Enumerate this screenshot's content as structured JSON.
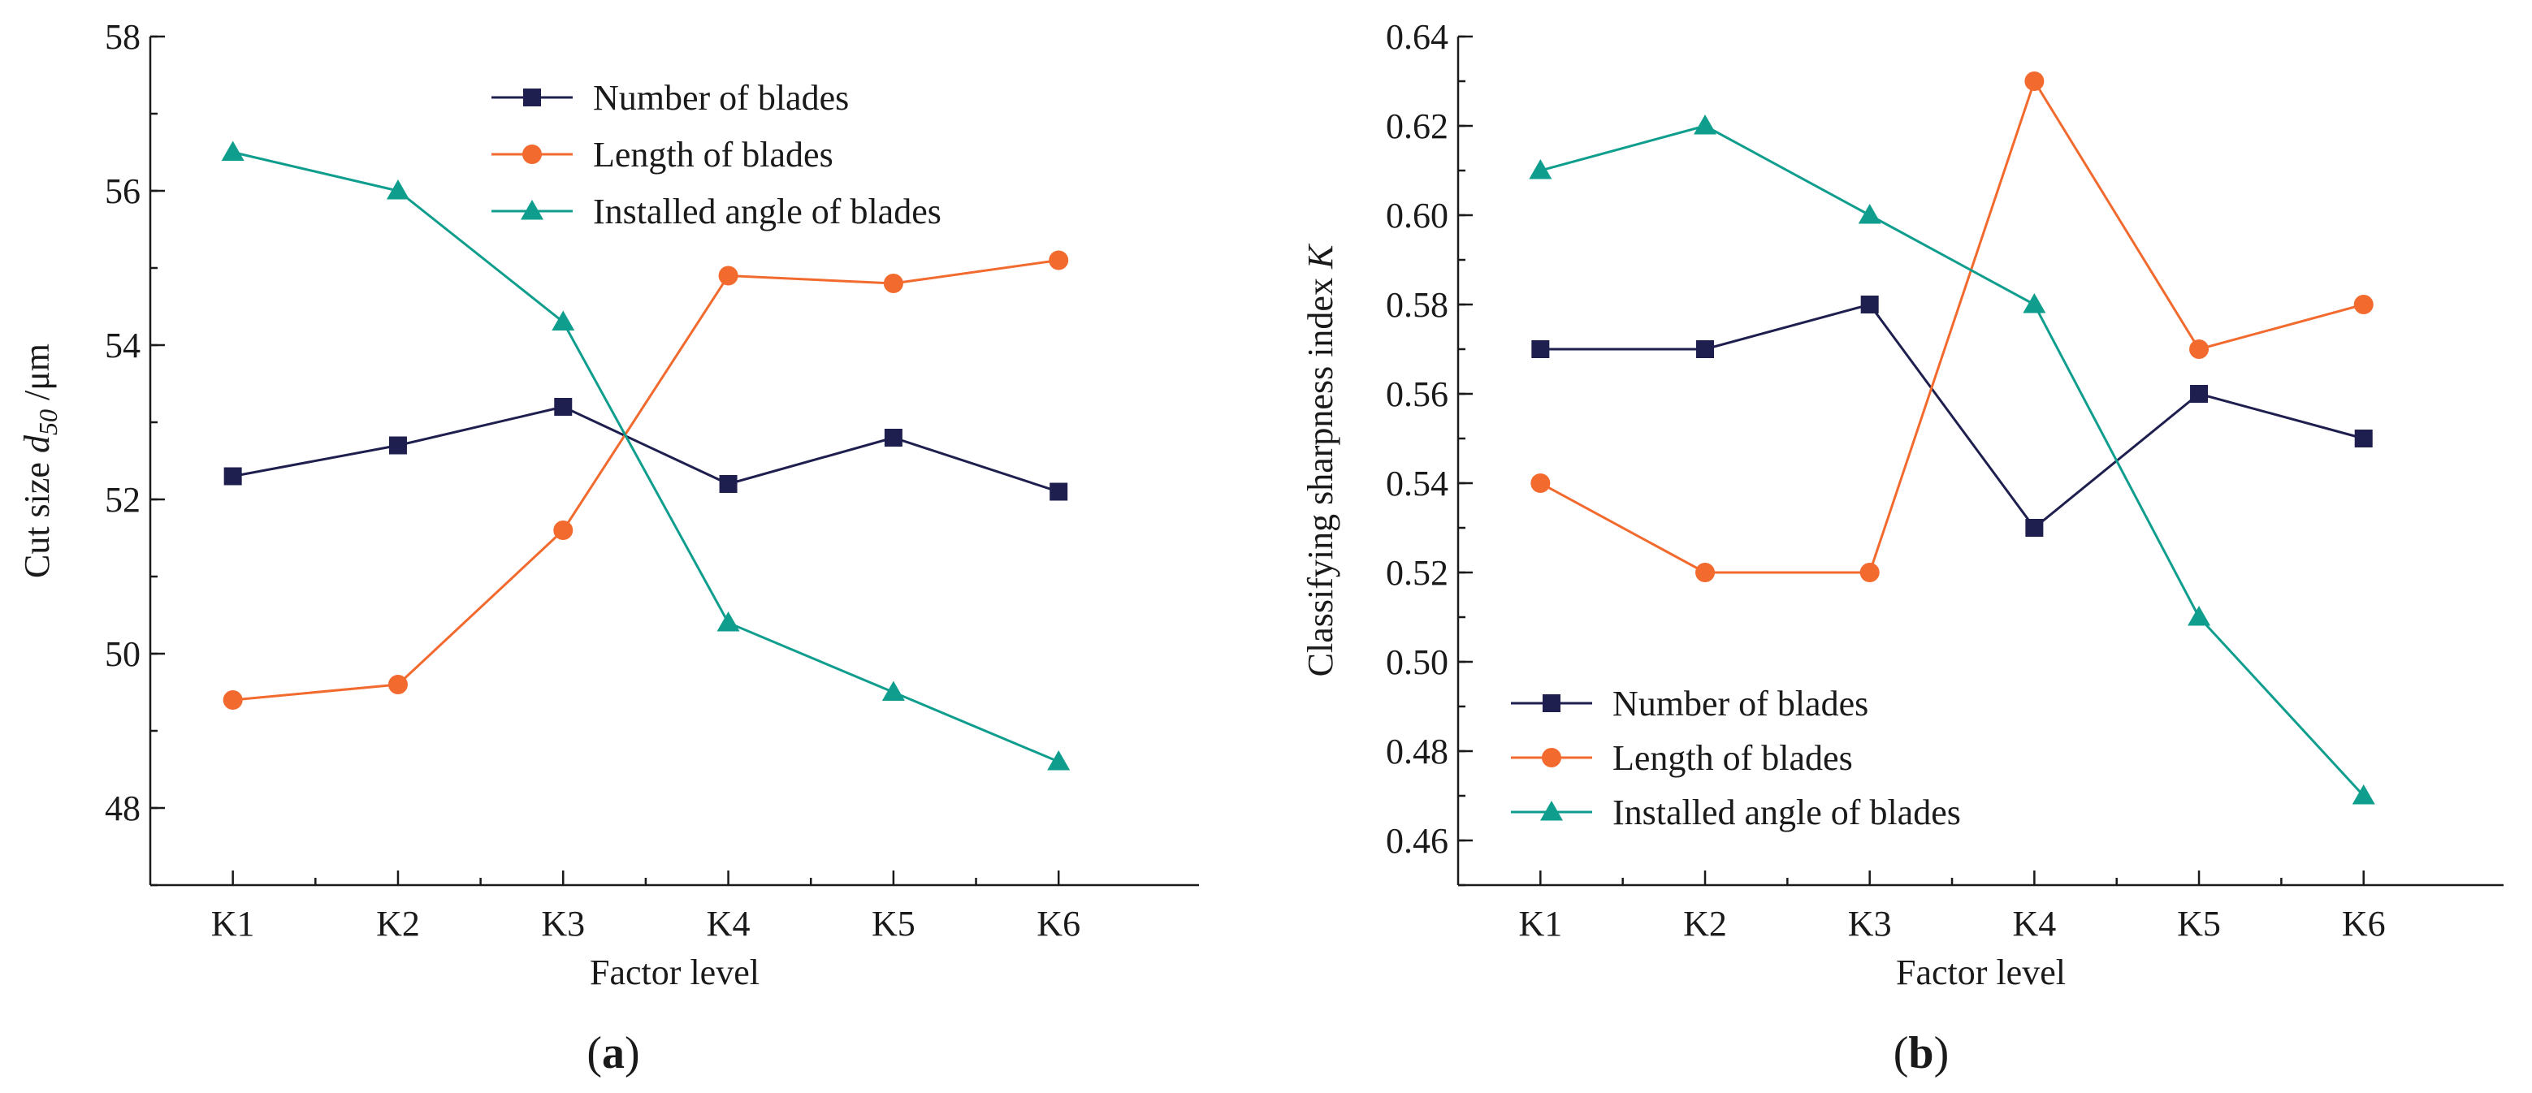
{
  "chart_data": [
    {
      "type": "line",
      "panel_label": "(a)",
      "panel_letter": "a",
      "categories": [
        "K1",
        "K2",
        "K3",
        "K4",
        "K5",
        "K6"
      ],
      "xlabel": "Factor level",
      "ylabel": {
        "prefix": "Cut size ",
        "italic": "d",
        "sub": "50",
        "suffix": " /μm"
      },
      "ylim": [
        47,
        58
      ],
      "yticks": [
        "48",
        "50",
        "52",
        "54",
        "56",
        "58"
      ],
      "legend_position": "top-right",
      "series": [
        {
          "name": "Number of blades",
          "color": "#1f1f4f",
          "marker": "square",
          "values": [
            52.3,
            52.7,
            53.2,
            52.2,
            52.8,
            52.1
          ]
        },
        {
          "name": "Length of blades",
          "color": "#f26a2e",
          "marker": "circle",
          "values": [
            49.4,
            49.6,
            51.6,
            54.9,
            54.8,
            55.1
          ]
        },
        {
          "name": "Installed angle of blades",
          "color": "#0f9e8e",
          "marker": "triangle",
          "values": [
            56.5,
            56.0,
            54.3,
            50.4,
            49.5,
            48.6
          ]
        }
      ]
    },
    {
      "type": "line",
      "panel_label": "(b)",
      "panel_letter": "b",
      "categories": [
        "K1",
        "K2",
        "K3",
        "K4",
        "K5",
        "K6"
      ],
      "xlabel": "Factor level",
      "ylabel": {
        "prefix": "Classifying sharpness index ",
        "italic": "K",
        "sub": "",
        "suffix": ""
      },
      "ylim": [
        0.45,
        0.64
      ],
      "yticks": [
        "0.46",
        "0.48",
        "0.50",
        "0.52",
        "0.54",
        "0.56",
        "0.58",
        "0.60",
        "0.62",
        "0.64"
      ],
      "legend_position": "bottom-left",
      "series": [
        {
          "name": "Number of blades",
          "color": "#1f1f4f",
          "marker": "square",
          "values": [
            0.57,
            0.57,
            0.58,
            0.53,
            0.56,
            0.55
          ]
        },
        {
          "name": "Length of blades",
          "color": "#f26a2e",
          "marker": "circle",
          "values": [
            0.54,
            0.52,
            0.52,
            0.63,
            0.57,
            0.58
          ]
        },
        {
          "name": "Installed angle of blades",
          "color": "#0f9e8e",
          "marker": "triangle",
          "values": [
            0.61,
            0.62,
            0.6,
            0.58,
            0.51,
            0.47
          ]
        }
      ]
    }
  ]
}
